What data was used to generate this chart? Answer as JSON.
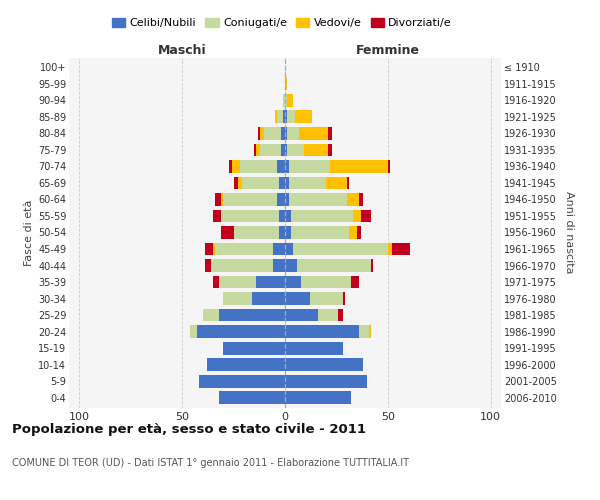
{
  "age_groups": [
    "0-4",
    "5-9",
    "10-14",
    "15-19",
    "20-24",
    "25-29",
    "30-34",
    "35-39",
    "40-44",
    "45-49",
    "50-54",
    "55-59",
    "60-64",
    "65-69",
    "70-74",
    "75-79",
    "80-84",
    "85-89",
    "90-94",
    "95-99",
    "100+"
  ],
  "birth_years": [
    "2006-2010",
    "2001-2005",
    "1996-2000",
    "1991-1995",
    "1986-1990",
    "1981-1985",
    "1976-1980",
    "1971-1975",
    "1966-1970",
    "1961-1965",
    "1956-1960",
    "1951-1955",
    "1946-1950",
    "1941-1945",
    "1936-1940",
    "1931-1935",
    "1926-1930",
    "1921-1925",
    "1916-1920",
    "1911-1915",
    "≤ 1910"
  ],
  "maschi": {
    "celibi": [
      32,
      42,
      38,
      30,
      43,
      32,
      16,
      14,
      6,
      6,
      3,
      3,
      4,
      3,
      4,
      2,
      2,
      1,
      0,
      0,
      0
    ],
    "coniugati": [
      0,
      0,
      0,
      0,
      3,
      8,
      14,
      18,
      30,
      28,
      22,
      28,
      26,
      18,
      18,
      10,
      8,
      3,
      1,
      0,
      0
    ],
    "vedovi": [
      0,
      0,
      0,
      0,
      0,
      0,
      0,
      0,
      0,
      1,
      0,
      0,
      1,
      2,
      4,
      2,
      2,
      1,
      0,
      0,
      0
    ],
    "divorziati": [
      0,
      0,
      0,
      0,
      0,
      0,
      0,
      3,
      3,
      4,
      6,
      4,
      3,
      2,
      1,
      1,
      1,
      0,
      0,
      0,
      0
    ]
  },
  "femmine": {
    "nubili": [
      32,
      40,
      38,
      28,
      36,
      16,
      12,
      8,
      6,
      4,
      3,
      3,
      2,
      2,
      2,
      1,
      1,
      1,
      0,
      0,
      0
    ],
    "coniugate": [
      0,
      0,
      0,
      0,
      5,
      10,
      16,
      24,
      36,
      46,
      28,
      30,
      28,
      18,
      20,
      8,
      6,
      4,
      1,
      0,
      0
    ],
    "vedove": [
      0,
      0,
      0,
      0,
      1,
      0,
      0,
      0,
      0,
      2,
      4,
      4,
      6,
      10,
      28,
      12,
      14,
      8,
      3,
      1,
      0
    ],
    "divorziate": [
      0,
      0,
      0,
      0,
      0,
      2,
      1,
      4,
      1,
      9,
      2,
      5,
      2,
      1,
      1,
      2,
      2,
      0,
      0,
      0,
      0
    ]
  },
  "colors": {
    "celibi": "#4472c4",
    "coniugati": "#c5d9a0",
    "vedovi": "#ffc000",
    "divorziati": "#c0001d"
  },
  "xlim": [
    -105,
    105
  ],
  "xticks": [
    -100,
    -50,
    0,
    50,
    100
  ],
  "xticklabels": [
    "100",
    "50",
    "0",
    "50",
    "100"
  ],
  "title": "Popolazione per età, sesso e stato civile - 2011",
  "subtitle": "COMUNE DI TEOR (UD) - Dati ISTAT 1° gennaio 2011 - Elaborazione TUTTITALIA.IT",
  "ylabel": "Fasce di età",
  "ylabel2": "Anni di nascita",
  "legend_labels": [
    "Celibi/Nubili",
    "Coniugati/e",
    "Vedovi/e",
    "Divorziati/e"
  ],
  "bg_color": "#f5f5f5"
}
